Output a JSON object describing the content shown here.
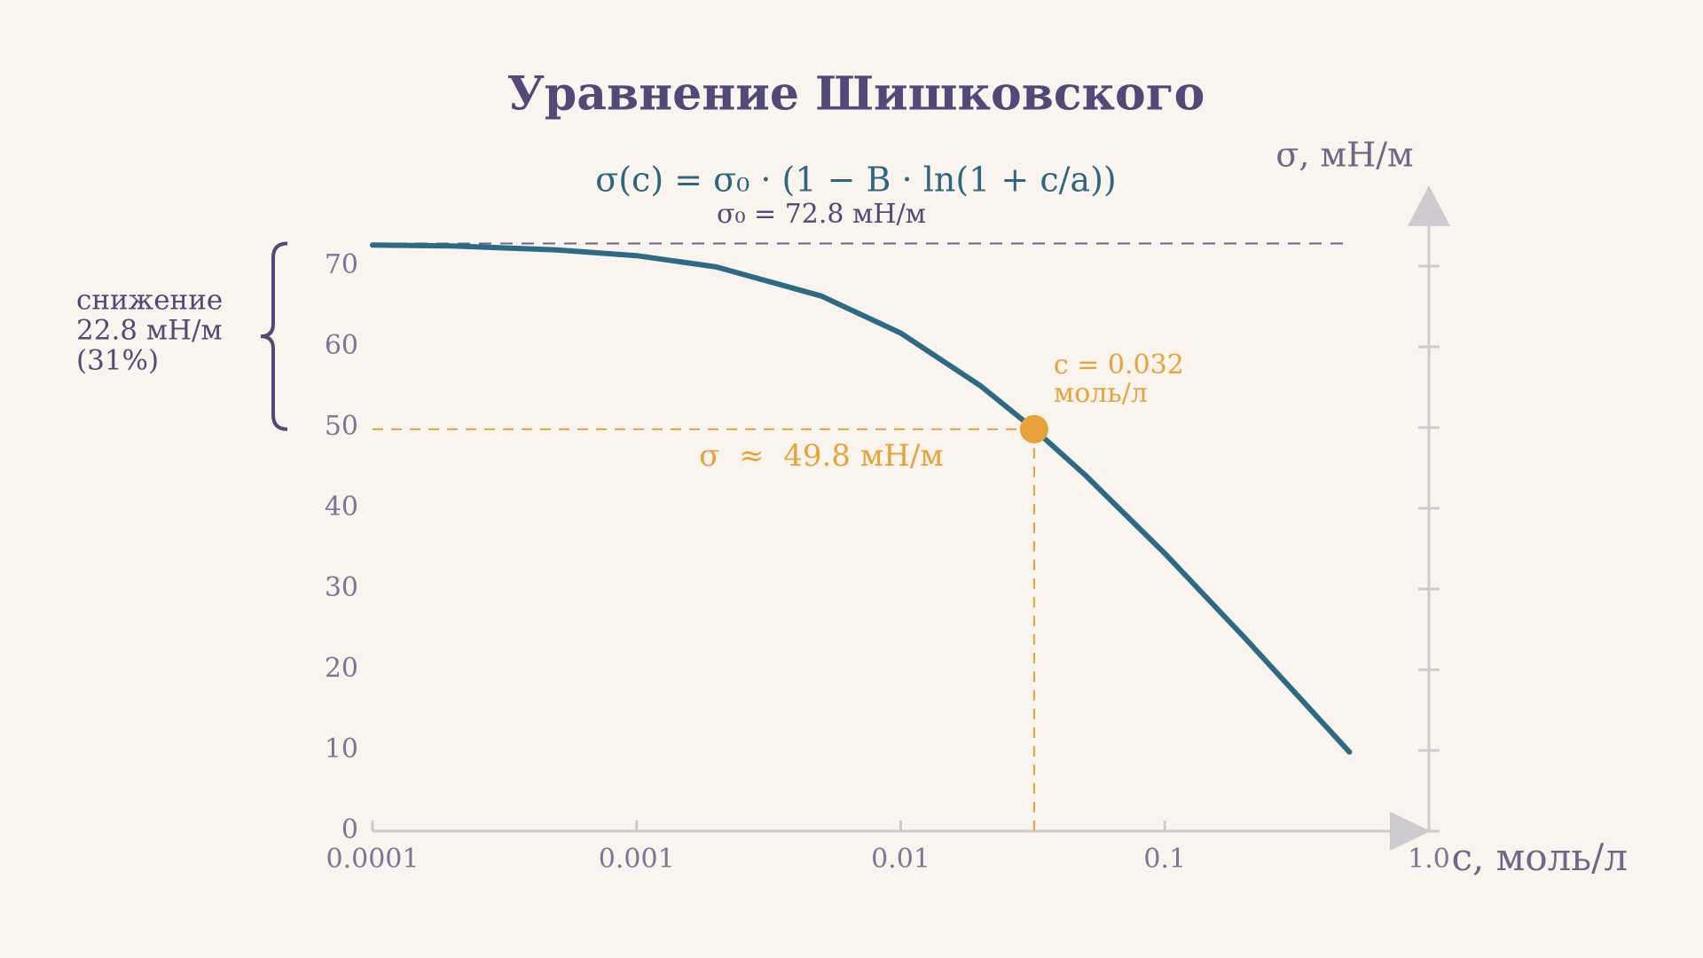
{
  "chart_data": {
    "type": "line",
    "title": "Уравнение Шишковского",
    "subtitle": "σ(c) = σ₀ · (1 − B · ln(1 + c/a))",
    "x_label": "c, моль/л",
    "y_label": "σ, мН/м",
    "xscale": "log",
    "xlim": [
      0.0001,
      1
    ],
    "ylim": [
      0,
      80
    ],
    "xticks": [
      0.0001,
      0.001,
      0.01,
      0.1,
      {
        "value": 1,
        "label": "1.0"
      }
    ],
    "yticks": [
      0,
      10,
      20,
      30,
      40,
      50,
      60,
      70
    ],
    "color": "#2c6a85",
    "x": [
      0.0001,
      0.0002,
      0.0005,
      0.001,
      0.002,
      0.005,
      0.01,
      0.02,
      0.032,
      0.05,
      0.1,
      0.2,
      0.5
    ],
    "values": [
      72.6,
      72.5,
      72.0,
      71.3,
      69.9,
      66.3,
      61.7,
      55.2,
      49.8,
      44.1,
      34.4,
      24.0,
      9.8
    ],
    "reference_line": {
      "value": 72.8,
      "label": "σ₀ = 72.8 мН/м"
    },
    "highlight": {
      "x": 0.032,
      "y": 49.8,
      "color": "#e8a23a",
      "label_lines": [
        "c = 0.032",
        "моль/л"
      ],
      "value_label": "σ  ≈  49.8 мН/м"
    },
    "drop_label": [
      "снижение",
      "22.8 мН/м",
      "(31%)"
    ]
  }
}
